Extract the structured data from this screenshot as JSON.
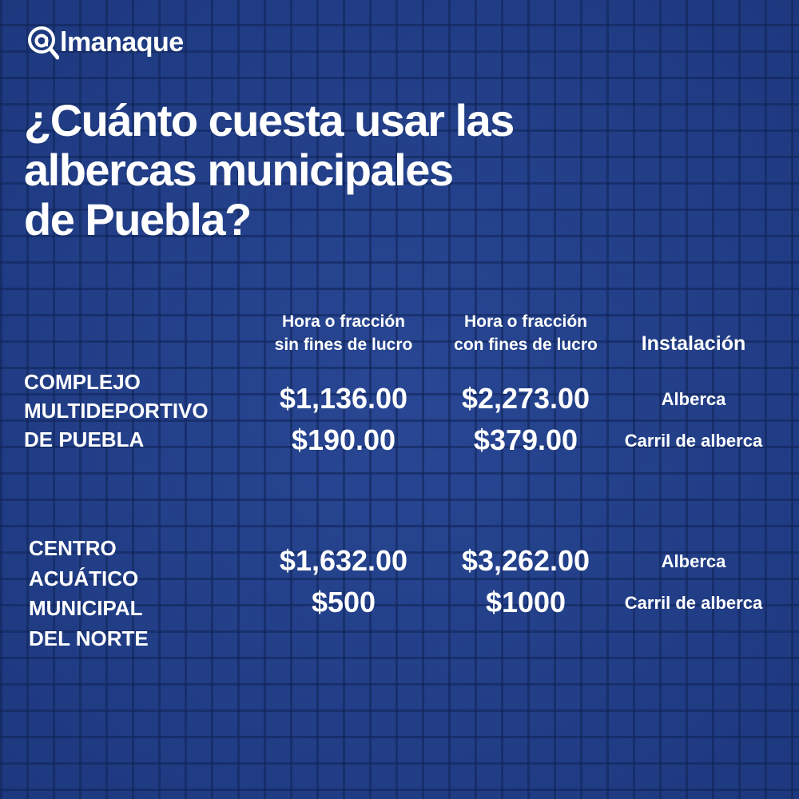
{
  "logo": {
    "text": "almanaque",
    "icon": "magnifier-at-icon"
  },
  "title": [
    "¿Cuánto cuesta usar las",
    "albercas municipales",
    "de Puebla?"
  ],
  "headers": {
    "col1": [
      "Hora o fracción",
      "sin fines de lucro"
    ],
    "col2": [
      "Hora o fracción",
      "con fines de lucro"
    ],
    "col3": "Instalación"
  },
  "venues": [
    {
      "name": [
        "COMPLEJO",
        "MULTIDEPORTIVO",
        "DE PUEBLA"
      ],
      "rows": [
        {
          "sin": "$1,136.00",
          "con": "$2,273.00",
          "inst": "Alberca"
        },
        {
          "sin": "$190.00",
          "con": "$379.00",
          "inst": "Carril de alberca"
        }
      ]
    },
    {
      "name": [
        "CENTRO",
        "ACUÁTICO",
        "MUNICIPAL",
        "DEL NORTE"
      ],
      "rows": [
        {
          "sin": "$1,632.00",
          "con": "$3,262.00",
          "inst": "Alberca"
        },
        {
          "sin": "$500",
          "con": "$1000",
          "inst": "Carril de alberca"
        }
      ]
    }
  ],
  "colors": {
    "background": "#22408c",
    "text": "#ffffff"
  }
}
